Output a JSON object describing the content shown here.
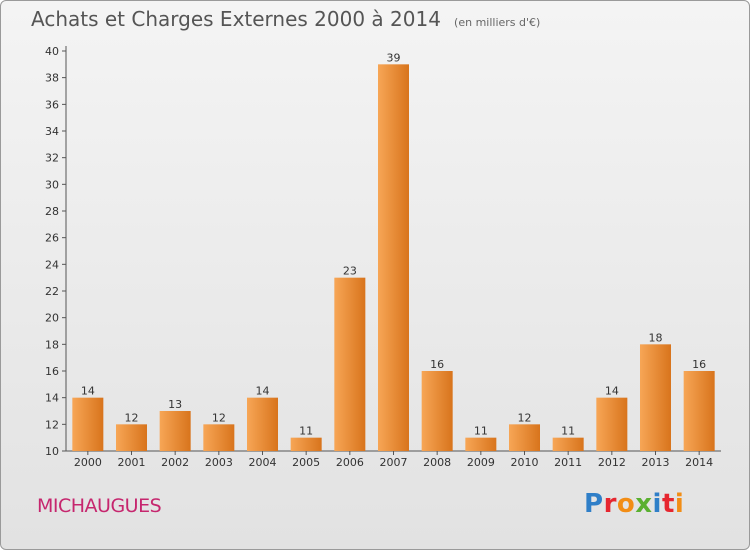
{
  "header": {
    "title": "Achats et Charges Externes 2000 à 2014",
    "unit": "(en milliers d'€)"
  },
  "footer": {
    "place": "MICHAUGUES",
    "logo": {
      "text": "Proxiti",
      "letters": [
        "P",
        "r",
        "o",
        "x",
        "i",
        "t",
        "i"
      ],
      "colors": [
        "#2f7fc8",
        "#e6262f",
        "#f28d15",
        "#5ab030",
        "#2f7fc8",
        "#e6262f",
        "#f28d15"
      ]
    }
  },
  "chart_data": {
    "type": "bar",
    "title": "Achats et Charges Externes 2000 à 2014",
    "subtitle": "(en milliers d'€)",
    "categories": [
      "2000",
      "2001",
      "2002",
      "2003",
      "2004",
      "2005",
      "2006",
      "2007",
      "2008",
      "2009",
      "2010",
      "2011",
      "2012",
      "2013",
      "2014"
    ],
    "values": [
      14,
      12,
      13,
      12,
      14,
      11,
      23,
      39,
      16,
      11,
      12,
      11,
      14,
      18,
      16
    ],
    "ylim": [
      10,
      40
    ],
    "yticks": [
      10,
      12,
      14,
      16,
      18,
      20,
      22,
      24,
      26,
      28,
      30,
      32,
      34,
      36,
      38,
      40
    ],
    "grid": false,
    "bar_colors": {
      "light": "#f7a656",
      "dark": "#d8741c"
    }
  }
}
